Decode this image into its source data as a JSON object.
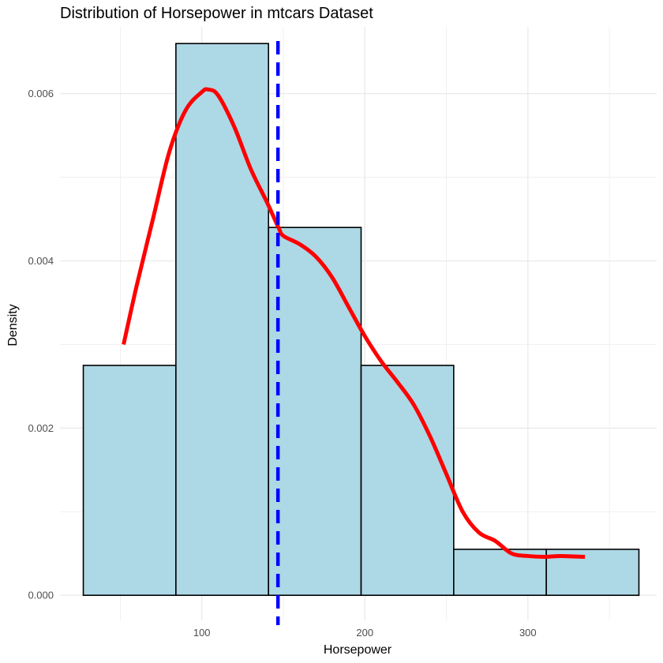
{
  "chart_data": {
    "type": "bar",
    "subtype": "histogram-with-density",
    "title": "Distribution of Horsepower in mtcars Dataset",
    "xlabel": "Horsepower",
    "ylabel": "Density",
    "xlim": [
      13,
      379
    ],
    "ylim": [
      -0.0003,
      0.0068
    ],
    "x_ticks": [
      100,
      200,
      300
    ],
    "x_tick_labels": [
      "100",
      "200",
      "300"
    ],
    "y_ticks": [
      0.0,
      0.002,
      0.004,
      0.006
    ],
    "y_tick_labels": [
      "0.000",
      "0.002",
      "0.004",
      "0.006"
    ],
    "grid": true,
    "bins": [
      {
        "x0": 27.3,
        "x1": 84.1,
        "density": 0.00275
      },
      {
        "x0": 84.1,
        "x1": 140.9,
        "density": 0.0066
      },
      {
        "x0": 140.9,
        "x1": 197.7,
        "density": 0.0044
      },
      {
        "x0": 197.7,
        "x1": 254.5,
        "density": 0.00275
      },
      {
        "x0": 254.5,
        "x1": 311.3,
        "density": 0.00055
      },
      {
        "x0": 311.3,
        "x1": 368.1,
        "density": 0.00055
      }
    ],
    "density_curve": {
      "x": [
        52,
        60,
        70,
        80,
        90,
        100,
        104,
        110,
        120,
        130,
        140,
        147,
        150,
        160,
        170,
        180,
        190,
        200,
        210,
        220,
        230,
        240,
        250,
        260,
        270,
        280,
        290,
        300,
        310,
        320,
        335
      ],
      "y": [
        0.003,
        0.0037,
        0.0045,
        0.0053,
        0.0058,
        0.00602,
        0.00605,
        0.00598,
        0.0056,
        0.0051,
        0.0047,
        0.0044,
        0.0043,
        0.0042,
        0.00405,
        0.0038,
        0.00345,
        0.0031,
        0.0028,
        0.00255,
        0.00228,
        0.0019,
        0.00145,
        0.001,
        0.00075,
        0.00065,
        0.0005,
        0.00047,
        0.00046,
        0.00047,
        0.00046
      ],
      "color": "#ff0000"
    },
    "mean_line": {
      "x": 146.7,
      "color": "#0000ff",
      "style": "dashed"
    },
    "colors": {
      "bar_fill": "#add8e6",
      "bar_stroke": "#000000",
      "grid": "#ebebeb"
    }
  }
}
